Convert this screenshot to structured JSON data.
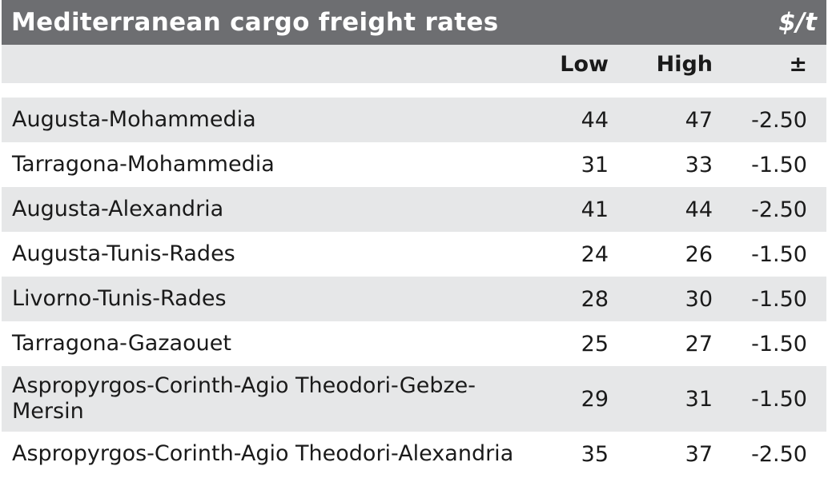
{
  "table": {
    "title": "Mediterranean cargo freight rates",
    "unit": "$/t",
    "columns": {
      "route": "",
      "low": "Low",
      "high": "High",
      "change": "±"
    },
    "rows": [
      {
        "route": "Augusta-Mohammedia",
        "low": "44",
        "high": "47",
        "change": "-2.50"
      },
      {
        "route": "Tarragona-Mohammedia",
        "low": "31",
        "high": "33",
        "change": "-1.50"
      },
      {
        "route": "Augusta-Alexandria",
        "low": "41",
        "high": "44",
        "change": "-2.50"
      },
      {
        "route": "Augusta-Tunis-Rades",
        "low": "24",
        "high": "26",
        "change": "-1.50"
      },
      {
        "route": "Livorno-Tunis-Rades",
        "low": "28",
        "high": "30",
        "change": "-1.50"
      },
      {
        "route": "Tarragona-Gazaouet",
        "low": "25",
        "high": "27",
        "change": "-1.50"
      },
      {
        "route": "Aspropyrgos-Corinth-Agio Theodori-Gebze-Mersin",
        "low": "29",
        "high": "31",
        "change": "-1.50"
      },
      {
        "route": "Aspropyrgos-Corinth-Agio Theodori-Alexandria",
        "low": "35",
        "high": "37",
        "change": "-2.50"
      }
    ]
  },
  "colors": {
    "title_bar": "#6d6e71",
    "title_text": "#ffffff",
    "shaded_row": "#e6e7e8",
    "plain_row": "#ffffff",
    "text": "#1a1a1a"
  }
}
